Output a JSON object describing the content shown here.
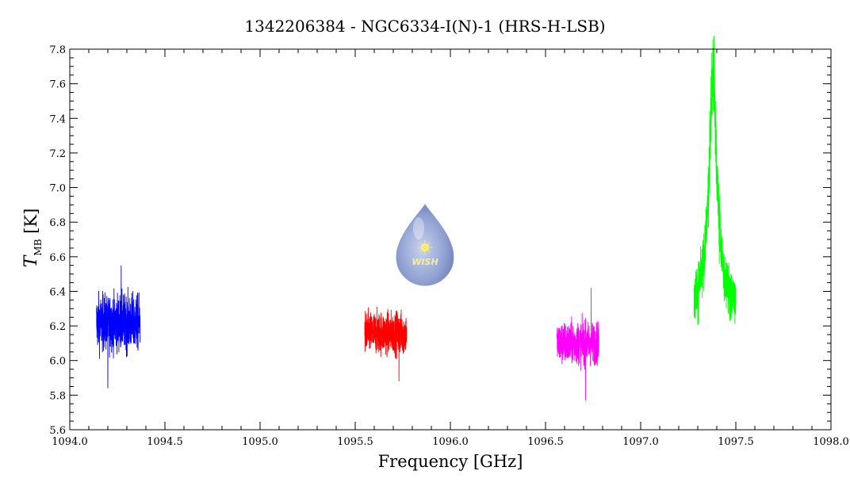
{
  "chart_data": {
    "type": "line",
    "title": "1342206384 - NGC6334-I(N)-1 (HRS-H-LSB)",
    "xlabel": "Frequency [GHz]",
    "ylabel_main": "T",
    "ylabel_sub": "MB",
    "ylabel_unit": "[K]",
    "xlim": [
      1094.0,
      1098.0
    ],
    "ylim": [
      5.6,
      7.8
    ],
    "x_ticks": [
      "1094.0",
      "1094.5",
      "1095.0",
      "1095.5",
      "1096.0",
      "1096.5",
      "1097.0",
      "1097.5",
      "1098.0"
    ],
    "y_ticks": [
      "5.6",
      "5.8",
      "6.0",
      "6.2",
      "6.4",
      "6.6",
      "6.8",
      "7.0",
      "7.2",
      "7.4",
      "7.6",
      "7.8"
    ],
    "grid": false,
    "logo": {
      "text": "WISH"
    },
    "series": [
      {
        "color": "#0000ff",
        "x_range": [
          1094.14,
          1094.37
        ],
        "baseline": 6.22,
        "noise": 0.16,
        "spikes": [
          [
            1094.2,
            5.84
          ],
          [
            1094.27,
            6.55
          ]
        ]
      },
      {
        "color": "#ff0000",
        "x_range": [
          1095.55,
          1095.77
        ],
        "baseline": 6.16,
        "noise": 0.12,
        "spikes": [
          [
            1095.73,
            5.88
          ]
        ]
      },
      {
        "color": "#ff00ff",
        "x_range": [
          1096.56,
          1096.78
        ],
        "baseline": 6.1,
        "noise": 0.12,
        "spikes": [
          [
            1096.71,
            5.77
          ],
          [
            1096.74,
            6.42
          ]
        ]
      },
      {
        "color": "#00ff00",
        "x_range": [
          1097.28,
          1097.5
        ],
        "baseline": 6.3,
        "noise": 0.1,
        "peak": {
          "center": 1097.38,
          "height": 1.35,
          "width": 0.025
        }
      }
    ]
  }
}
